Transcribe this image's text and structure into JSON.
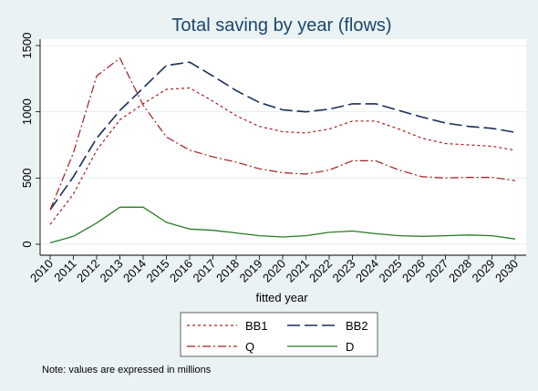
{
  "chart_data": {
    "type": "line",
    "title": "Total saving by year (flows)",
    "xlabel": "fitted year",
    "ylabel": "",
    "x": [
      2010,
      2011,
      2012,
      2013,
      2014,
      2015,
      2016,
      2017,
      2018,
      2019,
      2020,
      2021,
      2022,
      2023,
      2024,
      2025,
      2026,
      2027,
      2028,
      2029,
      2030
    ],
    "xlim": [
      2010,
      2030
    ],
    "ylim": [
      0,
      1500
    ],
    "yticks": [
      0,
      500,
      1000,
      1500
    ],
    "grid": true,
    "legend_position": "bottom",
    "series": [
      {
        "name": "BB1",
        "color": "#a3201c",
        "dash": "3,3",
        "width": 1.2,
        "values": [
          150,
          380,
          710,
          940,
          1060,
          1170,
          1180,
          1080,
          970,
          890,
          850,
          840,
          870,
          930,
          930,
          870,
          800,
          760,
          750,
          740,
          710
        ]
      },
      {
        "name": "BB2",
        "color": "#1a2f5a",
        "dash": "14,5",
        "width": 1.6,
        "values": [
          260,
          510,
          800,
          1010,
          1180,
          1350,
          1375,
          1270,
          1160,
          1070,
          1015,
          1000,
          1020,
          1060,
          1060,
          1010,
          960,
          915,
          890,
          875,
          845
        ]
      },
      {
        "name": "Q",
        "color": "#a3201c",
        "dash": "9,3,2,3",
        "width": 1.2,
        "values": [
          260,
          690,
          1270,
          1405,
          1050,
          810,
          710,
          660,
          620,
          570,
          540,
          530,
          560,
          630,
          630,
          560,
          510,
          500,
          505,
          505,
          480
        ]
      },
      {
        "name": "D",
        "color": "#2a7a27",
        "dash": "",
        "width": 1.3,
        "values": [
          10,
          60,
          160,
          280,
          280,
          165,
          115,
          105,
          85,
          65,
          55,
          65,
          90,
          100,
          80,
          65,
          60,
          65,
          70,
          65,
          40
        ]
      }
    ],
    "note": "Note: values are expressed in millions"
  }
}
